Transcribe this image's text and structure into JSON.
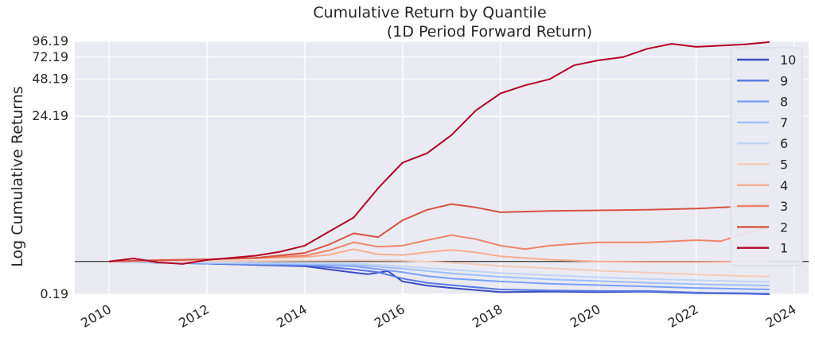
{
  "chart_data": {
    "type": "line",
    "title": "Cumulative Return by Quantile",
    "subtitle": "(1D Period Forward Return)",
    "xlabel": "",
    "ylabel": "Log Cumulative Returns",
    "y_scale": "symlog",
    "xlim": [
      2009.3,
      2024.3
    ],
    "ylim": [
      0.19,
      96.19
    ],
    "x_ticks": [
      "2010",
      "2012",
      "2014",
      "2016",
      "2018",
      "2020",
      "2022",
      "2024"
    ],
    "y_ticks": [
      "0.19",
      "24.19",
      "48.19",
      "72.19",
      "96.19"
    ],
    "baseline": 1,
    "grid": true,
    "background": "#eaeaf2",
    "legend_position": "right",
    "series": [
      {
        "name": "10",
        "color": "#3b4cc0",
        "x": [
          2010.0,
          2011.0,
          2012.0,
          2013.0,
          2014.0,
          2015.0,
          2015.3,
          2015.7,
          2016.0,
          2016.5,
          2017.0,
          2017.5,
          2018.0,
          2019.0,
          2020.0,
          2021.0,
          2022.0,
          2023.0,
          2023.5
        ],
        "y": [
          1.0,
          0.96,
          0.93,
          0.89,
          0.85,
          0.67,
          0.63,
          0.71,
          0.45,
          0.36,
          0.31,
          0.27,
          0.23,
          0.24,
          0.23,
          0.24,
          0.21,
          0.2,
          0.19
        ]
      },
      {
        "name": "9",
        "color": "#5977e3",
        "x": [
          2010.0,
          2011.0,
          2012.0,
          2013.0,
          2014.0,
          2015.0,
          2015.5,
          2016.0,
          2016.5,
          2017.0,
          2018.0,
          2019.0,
          2020.0,
          2021.0,
          2022.0,
          2023.0,
          2023.5
        ],
        "y": [
          1.0,
          0.96,
          0.93,
          0.9,
          0.88,
          0.76,
          0.68,
          0.52,
          0.42,
          0.37,
          0.28,
          0.26,
          0.25,
          0.25,
          0.22,
          0.21,
          0.2
        ]
      },
      {
        "name": "8",
        "color": "#7b9ff9",
        "x": [
          2010.0,
          2011.0,
          2012.0,
          2013.0,
          2014.0,
          2015.0,
          2016.0,
          2016.5,
          2017.0,
          2018.0,
          2019.0,
          2020.0,
          2021.0,
          2022.0,
          2023.0,
          2023.5
        ],
        "y": [
          1.0,
          0.97,
          0.95,
          0.92,
          0.9,
          0.85,
          0.68,
          0.58,
          0.52,
          0.45,
          0.4,
          0.37,
          0.34,
          0.31,
          0.29,
          0.28
        ]
      },
      {
        "name": "7",
        "color": "#9ebeff",
        "x": [
          2010.0,
          2011.0,
          2012.0,
          2013.0,
          2014.0,
          2015.0,
          2016.0,
          2017.0,
          2018.0,
          2019.0,
          2020.0,
          2021.0,
          2022.0,
          2023.0,
          2023.5
        ],
        "y": [
          1.0,
          0.97,
          0.95,
          0.94,
          0.92,
          0.89,
          0.78,
          0.65,
          0.56,
          0.5,
          0.46,
          0.42,
          0.39,
          0.37,
          0.36
        ]
      },
      {
        "name": "6",
        "color": "#c0d4f5",
        "x": [
          2010.0,
          2011.0,
          2012.0,
          2013.0,
          2014.0,
          2015.0,
          2016.0,
          2017.0,
          2018.0,
          2019.0,
          2020.0,
          2021.0,
          2022.0,
          2023.0,
          2023.5
        ],
        "y": [
          1.0,
          0.98,
          0.97,
          0.96,
          0.95,
          0.93,
          0.85,
          0.75,
          0.66,
          0.6,
          0.55,
          0.51,
          0.48,
          0.45,
          0.44
        ]
      },
      {
        "name": "5",
        "color": "#f2cbb7",
        "x": [
          2010.0,
          2011.0,
          2012.0,
          2013.0,
          2014.0,
          2015.0,
          2016.0,
          2017.0,
          2018.0,
          2019.0,
          2020.0,
          2021.0,
          2022.0,
          2023.0,
          2023.5
        ],
        "y": [
          1.0,
          1.01,
          1.01,
          1.02,
          1.03,
          1.04,
          1.03,
          0.96,
          0.86,
          0.79,
          0.72,
          0.67,
          0.62,
          0.58,
          0.57
        ]
      },
      {
        "name": "4",
        "color": "#f7ac8e",
        "x": [
          2010.0,
          2011.0,
          2012.0,
          2013.0,
          2014.0,
          2014.5,
          2015.0,
          2015.5,
          2016.0,
          2016.5,
          2017.0,
          2017.5,
          2018.0,
          2019.0,
          2020.0,
          2021.0,
          2022.0,
          2023.0,
          2023.5
        ],
        "y": [
          1.0,
          1.05,
          1.07,
          1.1,
          1.15,
          1.23,
          1.45,
          1.25,
          1.22,
          1.33,
          1.42,
          1.32,
          1.18,
          1.06,
          1.0,
          0.98,
          0.98,
          1.0,
          1.0
        ]
      },
      {
        "name": "3",
        "color": "#ee8468",
        "x": [
          2010.0,
          2011.0,
          2012.0,
          2013.0,
          2014.0,
          2014.5,
          2015.0,
          2015.5,
          2016.0,
          2016.5,
          2017.0,
          2017.5,
          2018.0,
          2018.5,
          2019.0,
          2020.0,
          2021.0,
          2022.0,
          2022.5,
          2023.0,
          2023.5
        ],
        "y": [
          1.0,
          1.04,
          1.07,
          1.12,
          1.2,
          1.4,
          1.75,
          1.55,
          1.6,
          1.85,
          2.1,
          1.9,
          1.6,
          1.45,
          1.6,
          1.75,
          1.75,
          1.85,
          1.8,
          2.2,
          2.55
        ]
      },
      {
        "name": "2",
        "color": "#d65244",
        "x": [
          2010.0,
          2011.0,
          2012.0,
          2013.0,
          2014.0,
          2014.5,
          2015.0,
          2015.5,
          2016.0,
          2016.5,
          2017.0,
          2017.5,
          2018.0,
          2019.0,
          2020.0,
          2021.0,
          2022.0,
          2023.0,
          2023.5
        ],
        "y": [
          1.0,
          1.04,
          1.07,
          1.12,
          1.3,
          1.65,
          2.2,
          2.0,
          3.0,
          3.8,
          4.3,
          4.0,
          3.6,
          3.7,
          3.75,
          3.8,
          3.9,
          4.1,
          4.45
        ]
      },
      {
        "name": "1",
        "color": "#b40426",
        "x": [
          2010.0,
          2010.5,
          2011.0,
          2011.5,
          2012.0,
          2013.0,
          2013.5,
          2014.0,
          2014.5,
          2015.0,
          2015.5,
          2016.0,
          2016.5,
          2017.0,
          2017.5,
          2018.0,
          2018.5,
          2019.0,
          2019.5,
          2020.0,
          2020.5,
          2021.0,
          2021.5,
          2022.0,
          2022.5,
          2023.0,
          2023.5
        ],
        "y": [
          1.0,
          1.1,
          0.97,
          0.92,
          1.05,
          1.2,
          1.35,
          1.6,
          2.3,
          3.2,
          6.0,
          10.0,
          12.0,
          17.0,
          27.0,
          37.0,
          43.0,
          48.0,
          62.0,
          68.0,
          72.0,
          84.0,
          92.0,
          87.0,
          89.0,
          91.0,
          95.0
        ]
      }
    ]
  }
}
